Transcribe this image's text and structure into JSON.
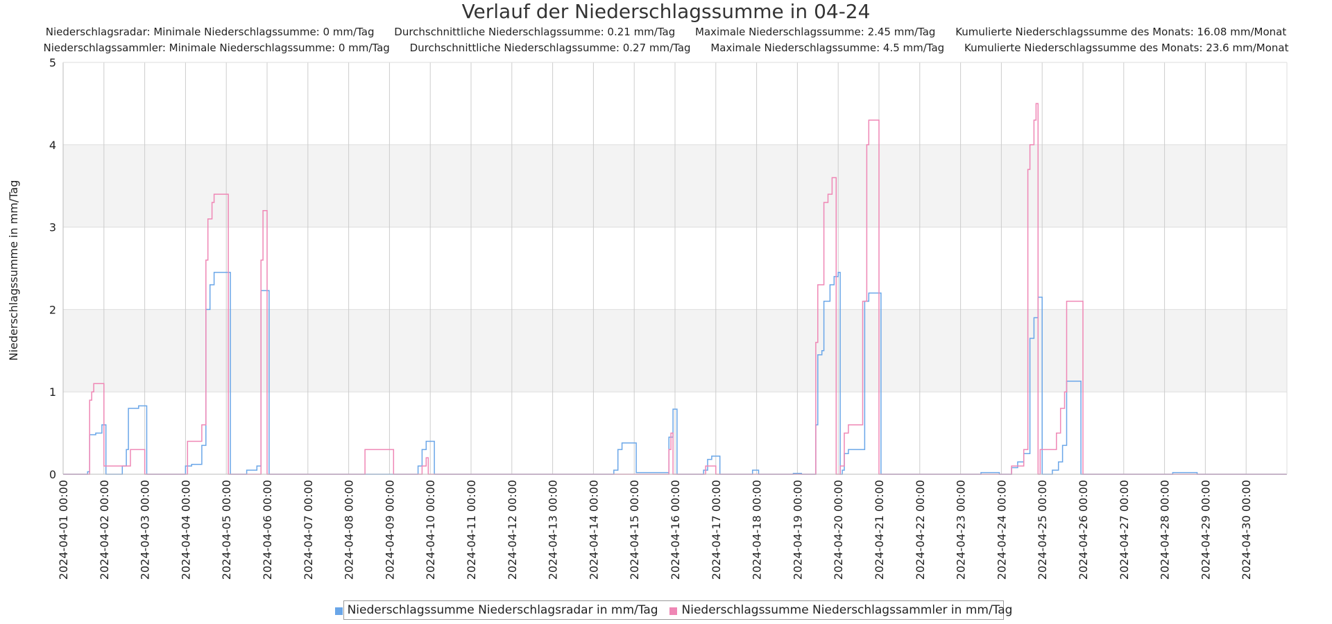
{
  "chart_data": {
    "type": "line",
    "title": "Verlauf der Niederschlagssumme in 04-24",
    "subtitle_rows": [
      [
        "Niederschlagsradar: Minimale Niederschlagssumme: 0 mm/Tag",
        "Durchschnittliche Niederschlagssumme: 0.21 mm/Tag",
        "Maximale Niederschlagssumme: 2.45 mm/Tag",
        "Kumulierte Niederschlagssumme des Monats: 16.08 mm/Monat"
      ],
      [
        "Niederschlagssammler: Minimale Niederschlagssumme: 0 mm/Tag",
        "Durchschnittliche Niederschlagssumme: 0.27 mm/Tag",
        "Maximale Niederschlagssumme: 4.5 mm/Tag",
        "Kumulierte Niederschlagssumme des Monats: 23.6 mm/Monat"
      ]
    ],
    "xlabel": "",
    "ylabel": "Niederschlagssumme in mm/Tag",
    "xlim": [
      0,
      30
    ],
    "ylim": [
      0,
      5
    ],
    "yticks": [
      0,
      1,
      2,
      3,
      4,
      5
    ],
    "x_tick_labels": [
      "2024-04-01 00:00",
      "2024-04-02 00:00",
      "2024-04-03 00:00",
      "2024-04-04 00:00",
      "2024-04-05 00:00",
      "2024-04-06 00:00",
      "2024-04-07 00:00",
      "2024-04-08 00:00",
      "2024-04-09 00:00",
      "2024-04-10 00:00",
      "2024-04-11 00:00",
      "2024-04-12 00:00",
      "2024-04-13 00:00",
      "2024-04-14 00:00",
      "2024-04-15 00:00",
      "2024-04-16 00:00",
      "2024-04-17 00:00",
      "2024-04-18 00:00",
      "2024-04-19 00:00",
      "2024-04-20 00:00",
      "2024-04-21 00:00",
      "2024-04-22 00:00",
      "2024-04-23 00:00",
      "2024-04-24 00:00",
      "2024-04-25 00:00",
      "2024-04-26 00:00",
      "2024-04-27 00:00",
      "2024-04-28 00:00",
      "2024-04-29 00:00",
      "2024-04-30 00:00"
    ],
    "x_unit": "days since 2024-04-01 00:00",
    "grid": true,
    "alternating_bands": true,
    "legend_position": "bottom-center",
    "series": [
      {
        "name": "Niederschlagssumme Niederschlagsradar in mm/Tag",
        "color": "#6aa6e8",
        "points": [
          [
            0,
            0
          ],
          [
            0.6,
            0
          ],
          [
            0.6,
            0.03
          ],
          [
            0.65,
            0.03
          ],
          [
            0.65,
            0.48
          ],
          [
            0.8,
            0.48
          ],
          [
            0.8,
            0.5
          ],
          [
            0.95,
            0.5
          ],
          [
            0.95,
            0.6
          ],
          [
            1.05,
            0.6
          ],
          [
            1.05,
            0
          ],
          [
            1.45,
            0
          ],
          [
            1.45,
            0.1
          ],
          [
            1.55,
            0.1
          ],
          [
            1.55,
            0.3
          ],
          [
            1.6,
            0.3
          ],
          [
            1.6,
            0.8
          ],
          [
            1.85,
            0.8
          ],
          [
            1.85,
            0.83
          ],
          [
            2.05,
            0.83
          ],
          [
            2.05,
            0
          ],
          [
            3.0,
            0
          ],
          [
            3.0,
            0.1
          ],
          [
            3.15,
            0.1
          ],
          [
            3.15,
            0.12
          ],
          [
            3.4,
            0.12
          ],
          [
            3.4,
            0.35
          ],
          [
            3.5,
            0.35
          ],
          [
            3.5,
            2.0
          ],
          [
            3.6,
            2.0
          ],
          [
            3.6,
            2.3
          ],
          [
            3.7,
            2.3
          ],
          [
            3.7,
            2.45
          ],
          [
            4.1,
            2.45
          ],
          [
            4.1,
            0
          ],
          [
            4.5,
            0
          ],
          [
            4.5,
            0.05
          ],
          [
            4.75,
            0.05
          ],
          [
            4.75,
            0.1
          ],
          [
            4.85,
            0.1
          ],
          [
            4.85,
            2.23
          ],
          [
            5.05,
            2.23
          ],
          [
            5.05,
            0
          ],
          [
            8.7,
            0
          ],
          [
            8.7,
            0.1
          ],
          [
            8.8,
            0.1
          ],
          [
            8.8,
            0.3
          ],
          [
            8.9,
            0.3
          ],
          [
            8.9,
            0.4
          ],
          [
            9.1,
            0.4
          ],
          [
            9.1,
            0
          ],
          [
            13.5,
            0
          ],
          [
            13.5,
            0.05
          ],
          [
            13.6,
            0.05
          ],
          [
            13.6,
            0.3
          ],
          [
            13.7,
            0.3
          ],
          [
            13.7,
            0.38
          ],
          [
            14.05,
            0.38
          ],
          [
            14.05,
            0.02
          ],
          [
            14.85,
            0.02
          ],
          [
            14.85,
            0.45
          ],
          [
            14.95,
            0.45
          ],
          [
            14.95,
            0.79
          ],
          [
            15.05,
            0.79
          ],
          [
            15.05,
            0
          ],
          [
            15.7,
            0
          ],
          [
            15.7,
            0.05
          ],
          [
            15.8,
            0.05
          ],
          [
            15.8,
            0.18
          ],
          [
            15.9,
            0.18
          ],
          [
            15.9,
            0.22
          ],
          [
            16.1,
            0.22
          ],
          [
            16.1,
            0
          ],
          [
            16.9,
            0
          ],
          [
            16.9,
            0.05
          ],
          [
            17.05,
            0.05
          ],
          [
            17.05,
            0
          ],
          [
            17.9,
            0
          ],
          [
            17.9,
            0.01
          ],
          [
            18.1,
            0.01
          ],
          [
            18.1,
            0
          ],
          [
            18.45,
            0
          ],
          [
            18.45,
            0.6
          ],
          [
            18.5,
            0.6
          ],
          [
            18.5,
            1.45
          ],
          [
            18.6,
            1.45
          ],
          [
            18.6,
            1.5
          ],
          [
            18.65,
            1.5
          ],
          [
            18.65,
            2.1
          ],
          [
            18.8,
            2.1
          ],
          [
            18.8,
            2.3
          ],
          [
            18.9,
            2.3
          ],
          [
            18.9,
            2.4
          ],
          [
            19.0,
            2.4
          ],
          [
            19.0,
            2.45
          ],
          [
            19.05,
            2.45
          ],
          [
            19.05,
            0
          ],
          [
            19.1,
            0
          ],
          [
            19.1,
            0.05
          ],
          [
            19.15,
            0.05
          ],
          [
            19.15,
            0.25
          ],
          [
            19.25,
            0.25
          ],
          [
            19.25,
            0.3
          ],
          [
            19.65,
            0.3
          ],
          [
            19.65,
            2.1
          ],
          [
            19.75,
            2.1
          ],
          [
            19.75,
            2.2
          ],
          [
            20.05,
            2.2
          ],
          [
            20.05,
            0
          ],
          [
            22.5,
            0
          ],
          [
            22.5,
            0.02
          ],
          [
            22.95,
            0.02
          ],
          [
            22.95,
            0
          ],
          [
            23.25,
            0
          ],
          [
            23.25,
            0.08
          ],
          [
            23.4,
            0.08
          ],
          [
            23.4,
            0.15
          ],
          [
            23.55,
            0.15
          ],
          [
            23.55,
            0.25
          ],
          [
            23.7,
            0.25
          ],
          [
            23.7,
            1.65
          ],
          [
            23.8,
            1.65
          ],
          [
            23.8,
            1.9
          ],
          [
            23.9,
            1.9
          ],
          [
            23.9,
            2.15
          ],
          [
            24.0,
            2.15
          ],
          [
            24.0,
            0
          ],
          [
            24.25,
            0
          ],
          [
            24.25,
            0.05
          ],
          [
            24.4,
            0.05
          ],
          [
            24.4,
            0.15
          ],
          [
            24.5,
            0.15
          ],
          [
            24.5,
            0.35
          ],
          [
            24.6,
            0.35
          ],
          [
            24.6,
            1.13
          ],
          [
            24.95,
            1.13
          ],
          [
            24.95,
            0
          ],
          [
            27.2,
            0
          ],
          [
            27.2,
            0.02
          ],
          [
            27.8,
            0.02
          ],
          [
            27.8,
            0
          ],
          [
            30,
            0
          ]
        ]
      },
      {
        "name": "Niederschlagssumme Niederschlagssammler in mm/Tag",
        "color": "#ef87b5",
        "points": [
          [
            0,
            0
          ],
          [
            0.65,
            0
          ],
          [
            0.65,
            0.9
          ],
          [
            0.7,
            0.9
          ],
          [
            0.7,
            1.0
          ],
          [
            0.75,
            1.0
          ],
          [
            0.75,
            1.1
          ],
          [
            1.0,
            1.1
          ],
          [
            1.0,
            0.1
          ],
          [
            1.65,
            0.1
          ],
          [
            1.65,
            0.3
          ],
          [
            2.0,
            0.3
          ],
          [
            2.0,
            0
          ],
          [
            3.05,
            0
          ],
          [
            3.05,
            0.4
          ],
          [
            3.4,
            0.4
          ],
          [
            3.4,
            0.6
          ],
          [
            3.5,
            0.6
          ],
          [
            3.5,
            2.6
          ],
          [
            3.55,
            2.6
          ],
          [
            3.55,
            3.1
          ],
          [
            3.65,
            3.1
          ],
          [
            3.65,
            3.3
          ],
          [
            3.7,
            3.3
          ],
          [
            3.7,
            3.4
          ],
          [
            4.05,
            3.4
          ],
          [
            4.05,
            0
          ],
          [
            4.85,
            0
          ],
          [
            4.85,
            2.6
          ],
          [
            4.9,
            2.6
          ],
          [
            4.9,
            3.2
          ],
          [
            5.0,
            3.2
          ],
          [
            5.0,
            0
          ],
          [
            7.4,
            0
          ],
          [
            7.4,
            0.3
          ],
          [
            8.1,
            0.3
          ],
          [
            8.1,
            0
          ],
          [
            8.8,
            0
          ],
          [
            8.8,
            0.1
          ],
          [
            8.9,
            0.1
          ],
          [
            8.9,
            0.2
          ],
          [
            8.95,
            0.2
          ],
          [
            8.95,
            0
          ],
          [
            14.85,
            0
          ],
          [
            14.85,
            0.3
          ],
          [
            14.9,
            0.3
          ],
          [
            14.9,
            0.5
          ],
          [
            14.95,
            0.5
          ],
          [
            14.95,
            0
          ],
          [
            15.75,
            0
          ],
          [
            15.75,
            0.1
          ],
          [
            16.0,
            0.1
          ],
          [
            16.0,
            0
          ],
          [
            18.45,
            0
          ],
          [
            18.45,
            1.6
          ],
          [
            18.5,
            1.6
          ],
          [
            18.5,
            2.3
          ],
          [
            18.65,
            2.3
          ],
          [
            18.65,
            3.3
          ],
          [
            18.75,
            3.3
          ],
          [
            18.75,
            3.4
          ],
          [
            18.85,
            3.4
          ],
          [
            18.85,
            3.6
          ],
          [
            18.95,
            3.6
          ],
          [
            18.95,
            0
          ],
          [
            19.05,
            0
          ],
          [
            19.05,
            0.1
          ],
          [
            19.15,
            0.1
          ],
          [
            19.15,
            0.5
          ],
          [
            19.25,
            0.5
          ],
          [
            19.25,
            0.6
          ],
          [
            19.6,
            0.6
          ],
          [
            19.6,
            2.1
          ],
          [
            19.7,
            2.1
          ],
          [
            19.7,
            4.0
          ],
          [
            19.75,
            4.0
          ],
          [
            19.75,
            4.3
          ],
          [
            20.0,
            4.3
          ],
          [
            20.0,
            0
          ],
          [
            23.25,
            0
          ],
          [
            23.25,
            0.1
          ],
          [
            23.55,
            0.1
          ],
          [
            23.55,
            0.3
          ],
          [
            23.65,
            0.3
          ],
          [
            23.65,
            3.7
          ],
          [
            23.7,
            3.7
          ],
          [
            23.7,
            4.0
          ],
          [
            23.8,
            4.0
          ],
          [
            23.8,
            4.3
          ],
          [
            23.85,
            4.3
          ],
          [
            23.85,
            4.5
          ],
          [
            23.9,
            4.5
          ],
          [
            23.9,
            0
          ],
          [
            23.95,
            0
          ],
          [
            23.95,
            0.3
          ],
          [
            24.35,
            0.3
          ],
          [
            24.35,
            0.5
          ],
          [
            24.45,
            0.5
          ],
          [
            24.45,
            0.8
          ],
          [
            24.55,
            0.8
          ],
          [
            24.55,
            1.0
          ],
          [
            24.6,
            1.0
          ],
          [
            24.6,
            2.1
          ],
          [
            25.0,
            2.1
          ],
          [
            25.0,
            0
          ],
          [
            30,
            0
          ]
        ]
      }
    ]
  }
}
